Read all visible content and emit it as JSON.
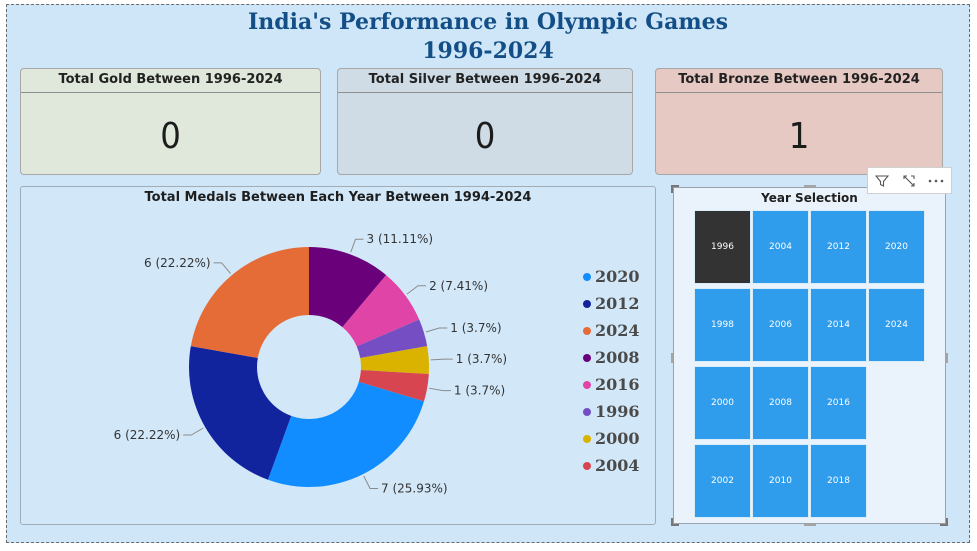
{
  "dashboard": {
    "title_line1": "India's Performance in Olympic Games",
    "title_line2": "1996-2024"
  },
  "cards": {
    "gold": {
      "label": "Total Gold Between 1996-2024",
      "value": "0"
    },
    "silver": {
      "label": "Total Silver Between 1996-2024",
      "value": "0"
    },
    "bronze": {
      "label": "Total Bronze Between 1996-2024",
      "value": "1"
    }
  },
  "chart_data": {
    "type": "pie",
    "title": "Total Medals Between Each Year Between 1994-2024",
    "donut": true,
    "legend_position": "right",
    "slices": [
      {
        "name": "2020",
        "value": 7,
        "label": "7 (25.93%)",
        "color": "#118dff"
      },
      {
        "name": "2012",
        "value": 6,
        "label": "6 (22.22%)",
        "color": "#12239e"
      },
      {
        "name": "2024",
        "value": 6,
        "label": "6 (22.22%)",
        "color": "#e66c37"
      },
      {
        "name": "2008",
        "value": 3,
        "label": "3 (11.11%)",
        "color": "#6b007b"
      },
      {
        "name": "2016",
        "value": 2,
        "label": "2 (7.41%)",
        "color": "#e044a7"
      },
      {
        "name": "1996",
        "value": 1,
        "label": "1 (3.7%)",
        "color": "#744ec2"
      },
      {
        "name": "2000",
        "value": 1,
        "label": "1 (3.7%)",
        "color": "#d9b300"
      },
      {
        "name": "2004",
        "value": 1,
        "label": "1 (3.7%)",
        "color": "#d64550"
      }
    ]
  },
  "slicer": {
    "title": "Year Selection",
    "selected": "1996",
    "columns": [
      [
        "1996",
        "1998",
        "2000",
        "2002"
      ],
      [
        "2004",
        "2006",
        "2008",
        "2010"
      ],
      [
        "2012",
        "2014",
        "2016",
        "2018"
      ],
      [
        "2020",
        "2024"
      ]
    ]
  },
  "toolbar": {
    "filter_icon": "filter-icon",
    "focus_icon": "focus-mode-icon",
    "more_icon": "more-options-icon"
  }
}
